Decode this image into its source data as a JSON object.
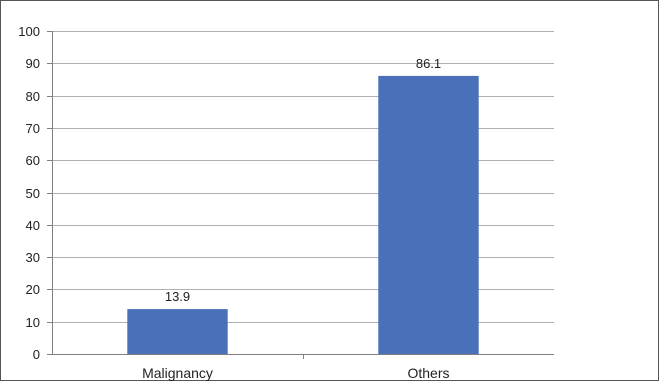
{
  "chart_data": {
    "type": "bar",
    "title": "",
    "xlabel": "",
    "ylabel": "",
    "categories": [
      "Malignancy",
      "Others"
    ],
    "values": [
      13.9,
      86.1
    ],
    "data_labels": [
      "13.9",
      "86.1"
    ],
    "ylim": [
      0,
      100
    ],
    "yticks": [
      "0",
      "10",
      "20",
      "30",
      "40",
      "50",
      "60",
      "70",
      "80",
      "90",
      "100"
    ],
    "ytick_values": [
      0,
      10,
      20,
      30,
      40,
      50,
      60,
      70,
      80,
      90,
      100
    ],
    "grid": true,
    "legend": "none",
    "bar_color": "#4a70b9",
    "grid_color": "#b0b0b0",
    "axis_color": "#808080"
  }
}
